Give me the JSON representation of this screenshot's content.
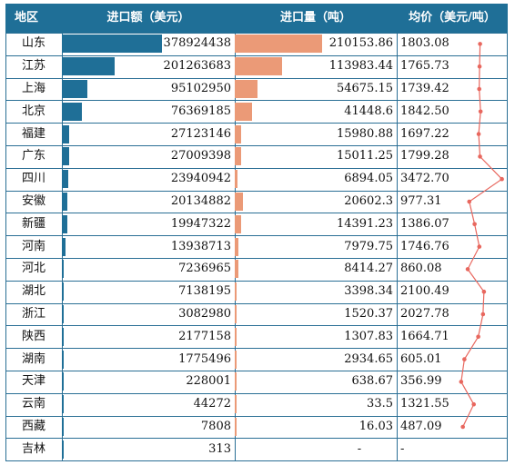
{
  "headers": {
    "region": "地区",
    "amount": "进口额（美元）",
    "quantity": "进口量（吨）",
    "price": "均价（美元/吨）"
  },
  "colors": {
    "header": "#1f6f97",
    "amount_bar": "#1f6f97",
    "quantity_bar": "#eb9a77",
    "price_line": "#e8675e"
  },
  "rows": [
    {
      "region": "山东",
      "amount": "378924438",
      "quantity": "210153.86",
      "price": "1803.08"
    },
    {
      "region": "江苏",
      "amount": "201263683",
      "quantity": "113983.44",
      "price": "1765.73"
    },
    {
      "region": "上海",
      "amount": "95102950",
      "quantity": "54675.15",
      "price": "1739.42"
    },
    {
      "region": "北京",
      "amount": "76369185",
      "quantity": "41448.6",
      "price": "1842.50"
    },
    {
      "region": "福建",
      "amount": "27123146",
      "quantity": "15980.88",
      "price": "1697.22"
    },
    {
      "region": "广东",
      "amount": "27009398",
      "quantity": "15011.25",
      "price": "1799.28"
    },
    {
      "region": "四川",
      "amount": "23940942",
      "quantity": "6894.05",
      "price": "3472.70"
    },
    {
      "region": "安徽",
      "amount": "20134882",
      "quantity": "20602.3",
      "price": "977.31"
    },
    {
      "region": "新疆",
      "amount": "19947322",
      "quantity": "14391.23",
      "price": "1386.07"
    },
    {
      "region": "河南",
      "amount": "13938713",
      "quantity": "7979.75",
      "price": "1746.76"
    },
    {
      "region": "河北",
      "amount": "7236965",
      "quantity": "8414.27",
      "price": "860.08"
    },
    {
      "region": "湖北",
      "amount": "7138195",
      "quantity": "3398.34",
      "price": "2100.49"
    },
    {
      "region": "浙江",
      "amount": "3082980",
      "quantity": "1520.37",
      "price": "2027.78"
    },
    {
      "region": "陕西",
      "amount": "2177158",
      "quantity": "1307.83",
      "price": "1664.71"
    },
    {
      "region": "湖南",
      "amount": "1775496",
      "quantity": "2934.65",
      "price": "605.01"
    },
    {
      "region": "天津",
      "amount": "228001",
      "quantity": "638.67",
      "price": "356.99"
    },
    {
      "region": "云南",
      "amount": "44272",
      "quantity": "33.5",
      "price": "1321.55"
    },
    {
      "region": "西藏",
      "amount": "7808",
      "quantity": "16.03",
      "price": "487.09"
    },
    {
      "region": "吉林",
      "amount": "313",
      "quantity": "-",
      "price": "-"
    }
  ],
  "chart_data": {
    "type": "table",
    "categories": [
      "山东",
      "江苏",
      "上海",
      "北京",
      "福建",
      "广东",
      "四川",
      "安徽",
      "新疆",
      "河南",
      "河北",
      "湖北",
      "浙江",
      "陕西",
      "湖南",
      "天津",
      "云南",
      "西藏",
      "吉林"
    ],
    "series": [
      {
        "name": "进口额（美元）",
        "values": [
          378924438,
          201263683,
          95102950,
          76369185,
          27123146,
          27009398,
          23940942,
          20134882,
          19947322,
          13938713,
          7236965,
          7138195,
          3082980,
          2177158,
          1775496,
          228001,
          44272,
          7808,
          313
        ]
      },
      {
        "name": "进口量（吨）",
        "values": [
          210153.86,
          113983.44,
          54675.15,
          41448.6,
          15980.88,
          15011.25,
          6894.05,
          20602.3,
          14391.23,
          7979.75,
          8414.27,
          3398.34,
          1520.37,
          1307.83,
          2934.65,
          638.67,
          33.5,
          16.03,
          null
        ]
      },
      {
        "name": "均价（美元/吨）",
        "values": [
          1803.08,
          1765.73,
          1739.42,
          1842.5,
          1697.22,
          1799.28,
          3472.7,
          977.31,
          1386.07,
          1746.76,
          860.08,
          2100.49,
          2027.78,
          1664.71,
          605.01,
          356.99,
          1321.55,
          487.09,
          null
        ]
      }
    ]
  }
}
